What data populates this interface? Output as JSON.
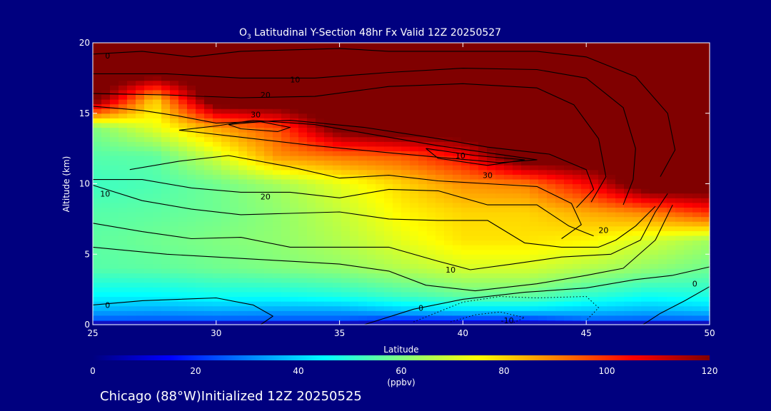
{
  "chart_data": {
    "type": "heatmap",
    "title": "Latitudinal Y-Section 48hr  Fx Valid 12Z 20250527",
    "title_species": "O",
    "title_subscript": "3",
    "xlabel": "Latitude",
    "ylabel": "Altitude (km)",
    "xlim": [
      25,
      50
    ],
    "ylim": [
      0,
      20
    ],
    "x_ticks": [
      "25",
      "30",
      "35",
      "40",
      "45",
      "50"
    ],
    "y_ticks": [
      "0",
      "5",
      "10",
      "15",
      "20"
    ],
    "colorbar": {
      "unit": "(ppbv)",
      "range": [
        0,
        120
      ],
      "ticks": [
        "0",
        "20",
        "40",
        "60",
        "80",
        "100",
        "120"
      ],
      "colors": [
        "#00007f",
        "#0000ff",
        "#0080ff",
        "#00ffff",
        "#80ff80",
        "#ffff00",
        "#ff8000",
        "#ff0000",
        "#800000"
      ]
    },
    "ozone_ppbv": {
      "note": "colour field, read from the image",
      "lat": [
        25,
        27.5,
        30,
        32.5,
        35,
        37.5,
        40,
        42.5,
        45,
        47.5,
        50
      ],
      "alt": [
        0,
        1,
        2,
        4,
        6,
        8,
        10,
        12,
        14,
        16,
        18,
        20
      ],
      "values": [
        [
          20,
          20,
          20,
          20,
          20,
          10,
          10,
          10,
          20,
          20,
          20
        ],
        [
          35,
          34,
          35,
          34,
          34,
          38,
          40,
          40,
          38,
          36,
          38
        ],
        [
          44,
          44,
          46,
          46,
          48,
          52,
          56,
          56,
          50,
          46,
          48
        ],
        [
          55,
          56,
          58,
          60,
          62,
          66,
          70,
          70,
          66,
          62,
          58
        ],
        [
          56,
          58,
          60,
          62,
          66,
          72,
          78,
          78,
          76,
          70,
          64
        ],
        [
          55,
          56,
          58,
          62,
          68,
          76,
          80,
          80,
          85,
          90,
          100
        ],
        [
          52,
          54,
          58,
          64,
          72,
          80,
          88,
          90,
          105,
          130,
          130
        ],
        [
          55,
          56,
          70,
          88,
          92,
          95,
          105,
          130,
          130,
          130,
          130
        ],
        [
          60,
          72,
          86,
          96,
          125,
          130,
          130,
          130,
          130,
          130,
          130
        ],
        [
          125,
          80,
          130,
          130,
          130,
          130,
          130,
          130,
          130,
          130,
          130
        ],
        [
          130,
          130,
          130,
          130,
          130,
          130,
          130,
          130,
          130,
          130,
          130
        ],
        [
          130,
          130,
          130,
          130,
          130,
          130,
          130,
          130,
          130,
          130,
          130
        ]
      ]
    },
    "contour_labels": [
      {
        "text": "0",
        "lat": 25.6,
        "alt": 19.1
      },
      {
        "text": "10",
        "lat": 33.2,
        "alt": 17.4
      },
      {
        "text": "20",
        "lat": 32.0,
        "alt": 16.3
      },
      {
        "text": "30",
        "lat": 31.6,
        "alt": 14.9
      },
      {
        "text": "10",
        "lat": 39.9,
        "alt": 12.0
      },
      {
        "text": "30",
        "lat": 41.0,
        "alt": 10.6
      },
      {
        "text": "20",
        "lat": 32.0,
        "alt": 9.1
      },
      {
        "text": "10",
        "lat": 25.5,
        "alt": 9.3
      },
      {
        "text": "20",
        "lat": 45.7,
        "alt": 6.7
      },
      {
        "text": "10",
        "lat": 39.5,
        "alt": 3.9
      },
      {
        "text": "0",
        "lat": 25.6,
        "alt": 1.4
      },
      {
        "text": "0",
        "lat": 38.3,
        "alt": 1.2
      },
      {
        "text": "0",
        "lat": 49.4,
        "alt": 2.9
      },
      {
        "text": "-10",
        "lat": 41.8,
        "alt": 0.3
      }
    ],
    "contour_lines": [
      [
        [
          25,
          19.2
        ],
        [
          27,
          19.4
        ],
        [
          29,
          19.0
        ],
        [
          31,
          19.4
        ],
        [
          33,
          19.5
        ],
        [
          35,
          19.6
        ],
        [
          37,
          19.4
        ],
        [
          40,
          19.4
        ],
        [
          43,
          19.4
        ],
        [
          45,
          19.0
        ],
        [
          47,
          17.6
        ],
        [
          48.3,
          15.0
        ],
        [
          48.6,
          12.4
        ],
        [
          48.0,
          10.5
        ]
      ],
      [
        [
          25,
          17.8
        ],
        [
          28,
          17.8
        ],
        [
          31,
          17.5
        ],
        [
          34,
          17.5
        ],
        [
          37,
          17.9
        ],
        [
          40,
          18.2
        ],
        [
          43,
          18.1
        ],
        [
          45,
          17.5
        ],
        [
          46.5,
          15.4
        ],
        [
          47,
          12.5
        ],
        [
          46.9,
          10.3
        ],
        [
          46.5,
          8.5
        ]
      ],
      [
        [
          25,
          16.4
        ],
        [
          28,
          16.3
        ],
        [
          31,
          16.1
        ],
        [
          34,
          16.2
        ],
        [
          37,
          16.9
        ],
        [
          40,
          17.1
        ],
        [
          43,
          16.8
        ],
        [
          44.5,
          15.6
        ],
        [
          45.5,
          13.2
        ],
        [
          45.8,
          10.5
        ],
        [
          45.2,
          8.7
        ]
      ],
      [
        [
          25,
          15.5
        ],
        [
          27,
          15.2
        ],
        [
          28.5,
          14.8
        ],
        [
          30,
          14.3
        ],
        [
          33,
          14.5
        ],
        [
          36,
          14.0
        ],
        [
          39,
          13.2
        ],
        [
          41,
          12.6
        ],
        [
          43.5,
          12.1
        ],
        [
          45,
          11.0
        ],
        [
          45.3,
          9.6
        ],
        [
          44.6,
          8.3
        ]
      ],
      [
        [
          28.5,
          13.8
        ],
        [
          30,
          14.1
        ],
        [
          31.5,
          14.5
        ],
        [
          34,
          14.2
        ],
        [
          36,
          13.6
        ],
        [
          39,
          12.7
        ],
        [
          41,
          12.2
        ],
        [
          43,
          11.7
        ],
        [
          41.5,
          11.5
        ],
        [
          39.5,
          11.8
        ],
        [
          37,
          12.2
        ],
        [
          34,
          12.7
        ],
        [
          31,
          13.3
        ],
        [
          28.5,
          13.8
        ]
      ],
      [
        [
          30.5,
          14.2
        ],
        [
          31.8,
          14.4
        ],
        [
          33,
          14.0
        ],
        [
          32.5,
          13.7
        ],
        [
          31,
          13.9
        ],
        [
          30.5,
          14.2
        ]
      ],
      [
        [
          38.5,
          12.5
        ],
        [
          40.5,
          12.0
        ],
        [
          42.5,
          11.7
        ],
        [
          41.0,
          11.3
        ],
        [
          39.0,
          11.8
        ],
        [
          38.5,
          12.5
        ]
      ],
      [
        [
          26.5,
          11.0
        ],
        [
          28.5,
          11.6
        ],
        [
          30.5,
          12.0
        ],
        [
          33,
          11.2
        ],
        [
          35,
          10.4
        ],
        [
          37,
          10.6
        ],
        [
          39,
          10.2
        ],
        [
          41,
          10.0
        ],
        [
          43,
          9.8
        ],
        [
          44.4,
          8.6
        ],
        [
          44.8,
          7.1
        ],
        [
          44.0,
          6.1
        ]
      ],
      [
        [
          25,
          10.3
        ],
        [
          27,
          10.3
        ],
        [
          29,
          9.7
        ],
        [
          31,
          9.4
        ],
        [
          33,
          9.4
        ],
        [
          35,
          9.0
        ],
        [
          37,
          9.6
        ],
        [
          39,
          9.5
        ],
        [
          41,
          8.5
        ],
        [
          43,
          8.5
        ],
        [
          44.3,
          7.0
        ],
        [
          45.0,
          6.5
        ],
        [
          45.3,
          6.3
        ]
      ],
      [
        [
          25,
          9.9
        ],
        [
          27,
          8.8
        ],
        [
          29,
          8.2
        ],
        [
          31,
          7.8
        ],
        [
          33,
          7.9
        ],
        [
          35,
          8.0
        ],
        [
          37,
          7.5
        ],
        [
          39,
          7.4
        ],
        [
          41,
          7.4
        ],
        [
          42.5,
          5.8
        ],
        [
          44,
          5.5
        ],
        [
          45.5,
          5.5
        ],
        [
          46.2,
          6.0
        ],
        [
          47.0,
          7.0
        ],
        [
          47.8,
          8.4
        ]
      ],
      [
        [
          25,
          7.2
        ],
        [
          27,
          6.6
        ],
        [
          29,
          6.1
        ],
        [
          31,
          6.2
        ],
        [
          33,
          5.5
        ],
        [
          35,
          5.5
        ],
        [
          37,
          5.5
        ],
        [
          39,
          4.5
        ],
        [
          40.3,
          3.9
        ],
        [
          42,
          4.3
        ],
        [
          44,
          4.8
        ],
        [
          46,
          5.0
        ],
        [
          47.2,
          6.0
        ],
        [
          47.8,
          8.0
        ],
        [
          48.3,
          9.3
        ]
      ],
      [
        [
          25,
          5.5
        ],
        [
          28,
          5.0
        ],
        [
          30,
          4.8
        ],
        [
          33,
          4.5
        ],
        [
          35,
          4.3
        ],
        [
          37,
          3.8
        ],
        [
          38.5,
          2.8
        ],
        [
          40.5,
          2.4
        ],
        [
          43,
          2.9
        ],
        [
          45,
          3.5
        ],
        [
          46.5,
          4.0
        ],
        [
          47.8,
          6.0
        ],
        [
          48.5,
          8.5
        ]
      ],
      [
        [
          25,
          1.4
        ],
        [
          27,
          1.7
        ],
        [
          30,
          1.9
        ],
        [
          31.5,
          1.4
        ],
        [
          32.3,
          0.6
        ],
        [
          31.8,
          0.0
        ]
      ],
      [
        [
          36,
          0.0
        ],
        [
          38,
          1.1
        ],
        [
          40,
          1.8
        ],
        [
          42.5,
          2.3
        ],
        [
          45,
          2.6
        ],
        [
          47,
          3.2
        ],
        [
          48.5,
          3.5
        ],
        [
          49.5,
          3.9
        ],
        [
          50,
          4.1
        ]
      ],
      [
        [
          47.3,
          0.0
        ],
        [
          48.0,
          0.8
        ],
        [
          49.0,
          1.7
        ],
        [
          50,
          2.7
        ]
      ]
    ],
    "negative_contours": [
      [
        [
          38,
          0.2
        ],
        [
          39,
          0.9
        ],
        [
          40,
          1.6
        ],
        [
          41.5,
          2.0
        ],
        [
          43,
          1.9
        ],
        [
          45,
          2.0
        ],
        [
          45.5,
          1.2
        ],
        [
          45.0,
          0.3
        ]
      ],
      [
        [
          39.5,
          0.2
        ],
        [
          40.5,
          0.7
        ],
        [
          41.5,
          0.9
        ],
        [
          42.5,
          0.5
        ],
        [
          42,
          0.1
        ]
      ]
    ]
  },
  "footer": {
    "location": "Chicago (88°W)Initialized 12Z 20250525"
  }
}
